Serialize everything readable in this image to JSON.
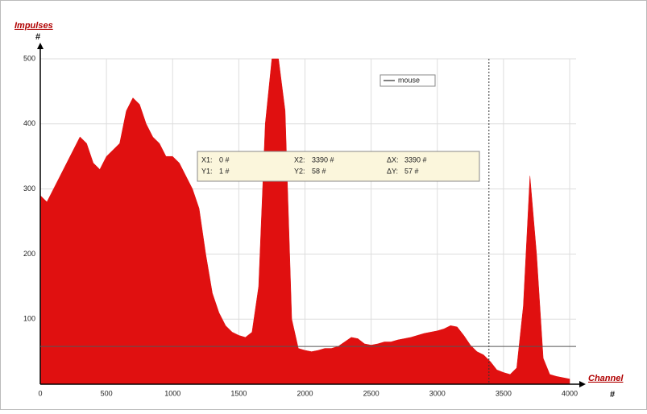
{
  "chart_data": {
    "type": "area",
    "y_label": "Impulses",
    "y_unit": "#",
    "x_label": "Channel",
    "x_unit": "#",
    "x": [
      0,
      50,
      100,
      150,
      200,
      250,
      300,
      350,
      400,
      450,
      500,
      550,
      600,
      650,
      700,
      750,
      800,
      850,
      900,
      950,
      1000,
      1050,
      1100,
      1150,
      1200,
      1250,
      1300,
      1350,
      1400,
      1450,
      1500,
      1550,
      1600,
      1650,
      1700,
      1750,
      1800,
      1850,
      1900,
      1950,
      2000,
      2050,
      2100,
      2150,
      2200,
      2250,
      2300,
      2350,
      2400,
      2450,
      2500,
      2550,
      2600,
      2650,
      2700,
      2750,
      2800,
      2850,
      2900,
      2950,
      3000,
      3050,
      3100,
      3150,
      3200,
      3250,
      3300,
      3350,
      3400,
      3450,
      3500,
      3550,
      3600,
      3650,
      3700,
      3750,
      3800,
      3850,
      3900,
      3950,
      4000
    ],
    "series": [
      {
        "name": "mouse",
        "color": "#e01010",
        "values": [
          290,
          280,
          300,
          320,
          340,
          360,
          380,
          370,
          340,
          330,
          350,
          360,
          370,
          420,
          440,
          430,
          400,
          380,
          370,
          350,
          350,
          340,
          320,
          300,
          270,
          200,
          140,
          110,
          90,
          80,
          75,
          72,
          80,
          150,
          400,
          500,
          500,
          420,
          100,
          55,
          52,
          50,
          52,
          55,
          55,
          58,
          65,
          72,
          70,
          62,
          60,
          62,
          65,
          65,
          68,
          70,
          72,
          75,
          78,
          80,
          82,
          85,
          90,
          88,
          75,
          60,
          50,
          45,
          35,
          22,
          18,
          15,
          25,
          120,
          320,
          200,
          40,
          15,
          12,
          10,
          8
        ]
      }
    ],
    "xlim": [
      0,
      4000
    ],
    "xticks": [
      0,
      500,
      1000,
      1500,
      2000,
      2500,
      3000,
      3500,
      4000
    ],
    "ylim": [
      0,
      500
    ],
    "yticks": [
      100,
      200,
      300,
      400,
      500
    ],
    "grid": true,
    "legend": "top-right",
    "cursor_x": 3390,
    "cursor_y": 58,
    "readout": [
      [
        "X1:",
        "0 #"
      ],
      [
        "X2:",
        "3390 #"
      ],
      [
        "ΔX:",
        "3390 #"
      ],
      [
        "Y1:",
        "1 #"
      ],
      [
        "Y2:",
        "58 #"
      ],
      [
        "ΔY:",
        "57 #"
      ]
    ]
  }
}
